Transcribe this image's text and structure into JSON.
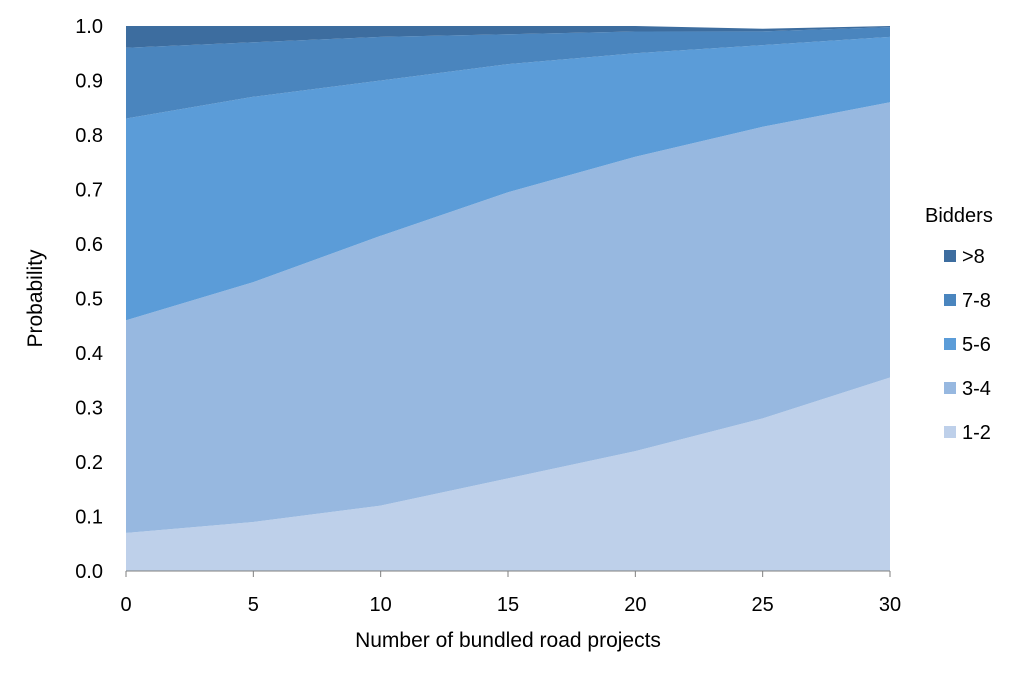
{
  "chart_data": {
    "type": "area",
    "stacked": true,
    "xlabel": "Number of bundled road projects",
    "ylabel": "Probability",
    "x": [
      0,
      5,
      10,
      15,
      20,
      25,
      30
    ],
    "xticks": [
      "0",
      "5",
      "10",
      "15",
      "20",
      "25",
      "30"
    ],
    "xlim": [
      0,
      30
    ],
    "ylim": [
      0,
      1
    ],
    "yticks": [
      "0.0",
      "0.1",
      "0.2",
      "0.3",
      "0.4",
      "0.5",
      "0.6",
      "0.7",
      "0.8",
      "0.9",
      "1.0"
    ],
    "grid": false,
    "legend": {
      "title": "Bidders",
      "placement": "right"
    },
    "series": [
      {
        "name": "1-2",
        "color": "#bed0ea",
        "values": [
          0.07,
          0.09,
          0.12,
          0.17,
          0.22,
          0.28,
          0.355
        ]
      },
      {
        "name": "3-4",
        "color": "#97b8e0",
        "values": [
          0.39,
          0.44,
          0.495,
          0.525,
          0.54,
          0.535,
          0.505
        ]
      },
      {
        "name": "5-6",
        "color": "#5b9cd8",
        "values": [
          0.37,
          0.34,
          0.285,
          0.235,
          0.19,
          0.15,
          0.12
        ]
      },
      {
        "name": "7-8",
        "color": "#4a85be",
        "values": [
          0.13,
          0.1,
          0.08,
          0.055,
          0.04,
          0.025,
          0.018
        ]
      },
      {
        "name": ">8",
        "color": "#3d6d9f",
        "values": [
          0.04,
          0.03,
          0.02,
          0.015,
          0.01,
          0.005,
          0.002
        ]
      }
    ]
  }
}
